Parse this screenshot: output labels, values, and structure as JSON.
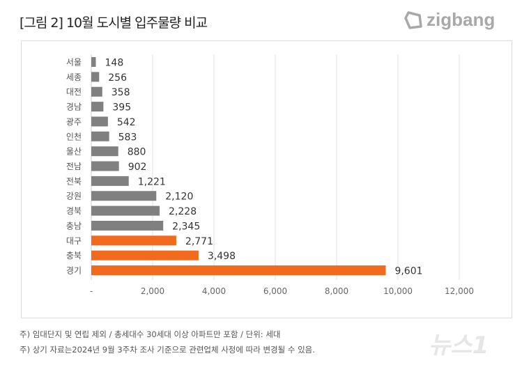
{
  "header": {
    "title": "[그림 2] 10월 도시별 입주물량 비교",
    "logo": "zigbang"
  },
  "chart_data": {
    "type": "bar",
    "orientation": "horizontal",
    "title": "[그림 2] 10월 도시별 입주물량 비교",
    "categories": [
      "서울",
      "세종",
      "대전",
      "경남",
      "광주",
      "인천",
      "울산",
      "전남",
      "전북",
      "강원",
      "경북",
      "충남",
      "대구",
      "충북",
      "경기"
    ],
    "values": [
      148,
      256,
      358,
      395,
      542,
      583,
      880,
      902,
      1221,
      2120,
      2228,
      2345,
      2771,
      3498,
      9601
    ],
    "value_labels": [
      "148",
      "256",
      "358",
      "395",
      "542",
      "583",
      "880",
      "902",
      "1,221",
      "2,120",
      "2,228",
      "2,345",
      "2,771",
      "3,498",
      "9,601"
    ],
    "highlighted": [
      "대구",
      "충북",
      "경기"
    ],
    "colors": {
      "default": "#808080",
      "highlight": "#f26a1e"
    },
    "xlim": [
      0,
      12000
    ],
    "xticks": [
      0,
      2000,
      4000,
      6000,
      8000,
      10000,
      12000
    ],
    "xtick_labels": [
      "-",
      "2,000",
      "4,000",
      "6,000",
      "8,000",
      "10,000",
      "12,000"
    ],
    "grid": true,
    "xlabel": "",
    "ylabel": ""
  },
  "notes": [
    "주) 임대단지 및 연립 제외 / 총세대수 30세대 이상 아파트만 포함 / 단위: 세대",
    "주) 상기 자료는2024년 9월 3주차 조사 기준으로 관련업체 사정에 따라 변경될 수 있음."
  ],
  "watermark": "뉴스1"
}
